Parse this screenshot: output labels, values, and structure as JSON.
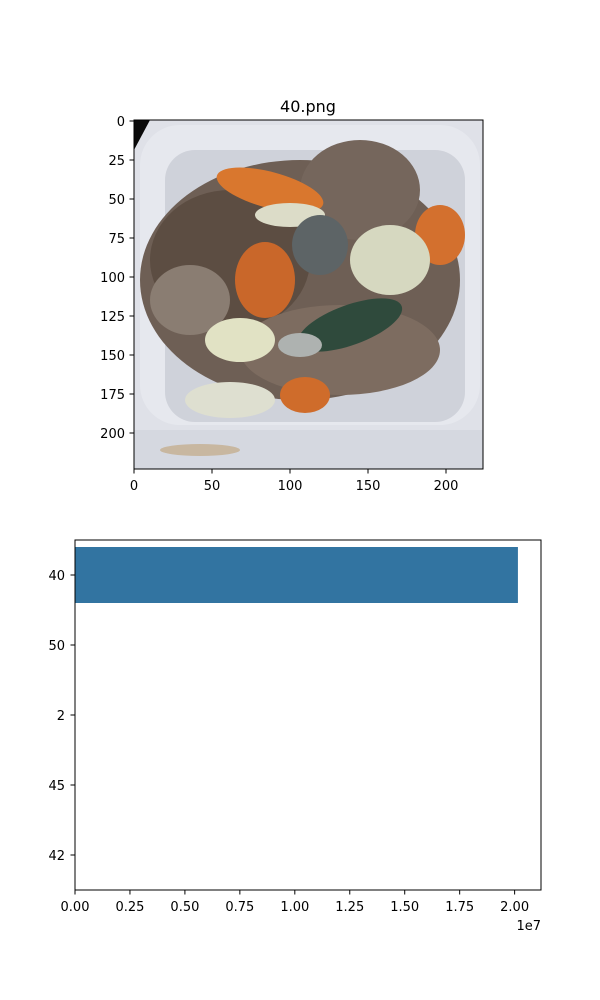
{
  "image_panel": {
    "title": "40.png",
    "content": "Photo of a stir-fried dish with sliced meat, carrot slices, cabbage and greens in a white container",
    "x_ticks": [
      "0",
      "50",
      "100",
      "150",
      "200"
    ],
    "y_ticks": [
      "0",
      "25",
      "50",
      "75",
      "100",
      "125",
      "150",
      "175",
      "200"
    ],
    "xlim": [
      -0.5,
      223.5
    ],
    "ylim": [
      223.5,
      -0.5
    ]
  },
  "chart_data": {
    "type": "bar",
    "orientation": "horizontal",
    "categories": [
      "40",
      "50",
      "2",
      "45",
      "42"
    ],
    "values": [
      20150000,
      0,
      0,
      0,
      0
    ],
    "xlim": [
      0,
      21200000
    ],
    "x_ticks": [
      "0.00",
      "0.25",
      "0.50",
      "0.75",
      "1.00",
      "1.25",
      "1.50",
      "1.75",
      "2.00"
    ],
    "x_tick_values": [
      0,
      2500000,
      5000000,
      7500000,
      10000000,
      12500000,
      15000000,
      17500000,
      20000000
    ],
    "offset_text": "1e7",
    "bar_color": "#3274a1",
    "grid": false
  }
}
